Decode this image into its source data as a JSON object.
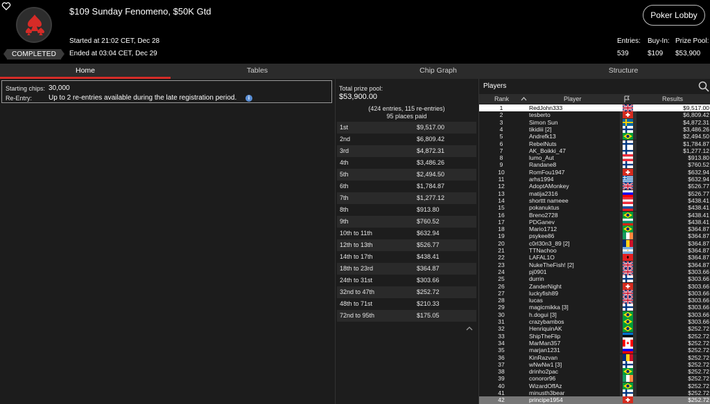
{
  "header": {
    "title": "$109 Sunday Fenomeno, $50K Gtd",
    "started": "Started at 21:02 CET, Dec 28",
    "ended": "Ended at 03:04 CET, Dec 29",
    "status": "COMPLETED",
    "lobby_button": "Poker Lobby",
    "stats": [
      {
        "label": "Entries:",
        "value": "539"
      },
      {
        "label": "Buy-In:",
        "value": "$109"
      },
      {
        "label": "Prize Pool:",
        "value": "$53,900"
      }
    ]
  },
  "tabs": [
    "Home",
    "Tables",
    "Chip Graph",
    "Structure"
  ],
  "info": {
    "starting_label": "Starting chips:",
    "starting_value": "30,000",
    "reentry_label": "Re-Entry:",
    "reentry_value": "Up to 2 re-entries available during the late registration period."
  },
  "prize": {
    "label": "Total prize pool:",
    "total": "$53,900.00",
    "entries": "(424 entries, 115 re-entries)",
    "places": "95 places paid",
    "rows": [
      {
        "place": "1st",
        "amount": "$9,517.00"
      },
      {
        "place": "2nd",
        "amount": "$6,809.42"
      },
      {
        "place": "3rd",
        "amount": "$4,872.31"
      },
      {
        "place": "4th",
        "amount": "$3,486.26"
      },
      {
        "place": "5th",
        "amount": "$2,494.50"
      },
      {
        "place": "6th",
        "amount": "$1,784.87"
      },
      {
        "place": "7th",
        "amount": "$1,277.12"
      },
      {
        "place": "8th",
        "amount": "$913.80"
      },
      {
        "place": "9th",
        "amount": "$760.52"
      },
      {
        "place": "10th to 11th",
        "amount": "$632.94"
      },
      {
        "place": "12th to 13th",
        "amount": "$526.77"
      },
      {
        "place": "14th to 17th",
        "amount": "$438.41"
      },
      {
        "place": "18th to 23rd",
        "amount": "$364.87"
      },
      {
        "place": "24th to 31st",
        "amount": "$303.66"
      },
      {
        "place": "32nd to 47th",
        "amount": "$252.72"
      },
      {
        "place": "48th to 71st",
        "amount": "$210.33"
      },
      {
        "place": "72nd to 95th",
        "amount": "$175.05"
      }
    ]
  },
  "players": {
    "title": "Players",
    "columns": {
      "rank": "Rank",
      "player": "Player",
      "results": "Results"
    },
    "rows": [
      {
        "rank": "1",
        "name": "RedJohn333",
        "flag": "gb",
        "result": "$9,517.00"
      },
      {
        "rank": "2",
        "name": "tesberto",
        "flag": "ch",
        "result": "$6,809.42"
      },
      {
        "rank": "3",
        "name": "Simon Sun",
        "flag": "se",
        "result": "$4,872.31"
      },
      {
        "rank": "4",
        "name": "tikidiii [2]",
        "flag": "fi",
        "result": "$3,486.26"
      },
      {
        "rank": "5",
        "name": "Andrefk13",
        "flag": "br",
        "result": "$2,494.50"
      },
      {
        "rank": "6",
        "name": "RebelNuts",
        "flag": "fi",
        "result": "$1,784.87"
      },
      {
        "rank": "7",
        "name": "AK_Boikki_47",
        "flag": "fi",
        "result": "$1,277.12"
      },
      {
        "rank": "8",
        "name": "lumo_Aut",
        "flag": "at",
        "result": "$913.80"
      },
      {
        "rank": "9",
        "name": "Randane8",
        "flag": "fi",
        "result": "$760.52"
      },
      {
        "rank": "10",
        "name": "RomFou1947",
        "flag": "ch",
        "result": "$632.94"
      },
      {
        "rank": "11",
        "name": "arhs1994",
        "flag": "gr",
        "result": "$632.94"
      },
      {
        "rank": "12",
        "name": "AdoptAMonkey",
        "flag": "gb",
        "result": "$526.77"
      },
      {
        "rank": "13",
        "name": "matija2316",
        "flag": "si",
        "result": "$526.77"
      },
      {
        "rank": "14",
        "name": "shorttt nameee",
        "flag": "at",
        "result": "$438.41"
      },
      {
        "rank": "15",
        "name": "pokanuktus",
        "flag": "sk",
        "result": "$438.41"
      },
      {
        "rank": "16",
        "name": "Breno2728",
        "flag": "br",
        "result": "$438.41"
      },
      {
        "rank": "17",
        "name": "PDGanev",
        "flag": "bg",
        "result": "$438.41"
      },
      {
        "rank": "18",
        "name": "Mario1712",
        "flag": "br",
        "result": "$364.87"
      },
      {
        "rank": "19",
        "name": "psykee86",
        "flag": "ie",
        "result": "$364.87"
      },
      {
        "rank": "20",
        "name": "c0rl30n3_89 [2]",
        "flag": "ro",
        "result": "$364.87"
      },
      {
        "rank": "21",
        "name": "TTNachoo",
        "flag": "ar",
        "result": "$364.87"
      },
      {
        "rank": "22",
        "name": "LAFAL1O",
        "flag": "al",
        "result": "$364.87"
      },
      {
        "rank": "23",
        "name": "NukeTheFish! [2]",
        "flag": "gb",
        "result": "$364.87"
      },
      {
        "rank": "24",
        "name": "pj0901",
        "flag": "gb",
        "result": "$303.66"
      },
      {
        "rank": "25",
        "name": "durrin",
        "flag": "fi",
        "result": "$303.66"
      },
      {
        "rank": "26",
        "name": "ZanderNight",
        "flag": "ch",
        "result": "$303.66"
      },
      {
        "rank": "27",
        "name": "luckyfish89",
        "flag": "gb",
        "result": "$303.66"
      },
      {
        "rank": "28",
        "name": "lucas",
        "flag": "gb",
        "result": "$303.66"
      },
      {
        "rank": "29",
        "name": "magicmikka [3]",
        "flag": "fi",
        "result": "$303.66"
      },
      {
        "rank": "30",
        "name": "h.dogui [3]",
        "flag": "br",
        "result": "$303.66"
      },
      {
        "rank": "31",
        "name": "crazybambos",
        "flag": "br",
        "result": "$303.66"
      },
      {
        "rank": "32",
        "name": "HenriquinAK",
        "flag": "br",
        "result": "$252.72"
      },
      {
        "rank": "33",
        "name": "ShipTheFlip",
        "flag": "ee",
        "result": "$252.72"
      },
      {
        "rank": "34",
        "name": "MarMan357",
        "flag": "ca",
        "result": "$252.72"
      },
      {
        "rank": "35",
        "name": "marjan1231",
        "flag": "si",
        "result": "$252.72"
      },
      {
        "rank": "36",
        "name": "KinRazvan",
        "flag": "ro",
        "result": "$252.72"
      },
      {
        "rank": "37",
        "name": "wNwNw1 [3]",
        "flag": "fi",
        "result": "$252.72"
      },
      {
        "rank": "38",
        "name": "drinho2pac",
        "flag": "br",
        "result": "$252.72"
      },
      {
        "rank": "39",
        "name": "conoror96",
        "flag": "ie",
        "result": "$252.72"
      },
      {
        "rank": "40",
        "name": "WizardOffAz",
        "flag": "br",
        "result": "$252.72"
      },
      {
        "rank": "41",
        "name": "minusth3bear",
        "flag": "fi",
        "result": "$252.72"
      },
      {
        "rank": "42",
        "name": "principe1954",
        "flag": "ch",
        "result": "$252.72"
      }
    ]
  },
  "colors": {
    "accent": "#d62b27",
    "background": "#1c1c1c",
    "header": "#000000"
  },
  "icons": [
    "heart-icon",
    "spade-logo-icon",
    "info-icon",
    "search-icon",
    "flag-header-icon",
    "sort-up-icon",
    "caret-up-icon"
  ]
}
